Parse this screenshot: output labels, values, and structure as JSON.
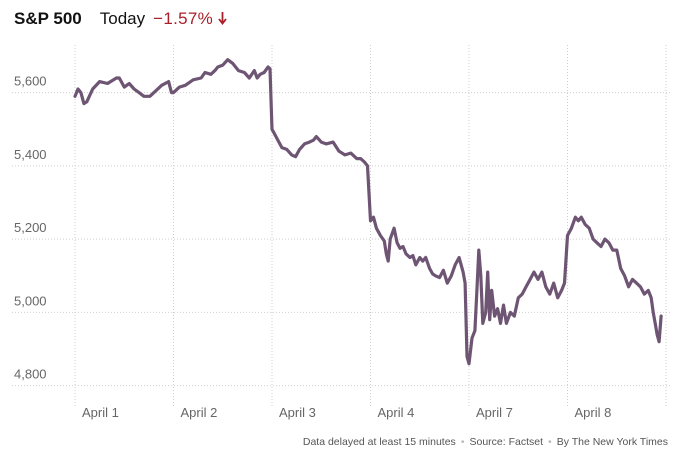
{
  "header": {
    "index_name": "S&P 500",
    "period": "Today",
    "change": "−1.57%",
    "change_direction": "down",
    "change_color": "#a8202a"
  },
  "footer": {
    "delay_note": "Data delayed at least 15 minutes",
    "source": "Source: Factset",
    "credit": "By The New York Times"
  },
  "colors": {
    "line": "#6e5573",
    "grid": "#cfcfcf",
    "axis_text": "#666666"
  },
  "chart_data": {
    "type": "line",
    "title": "S&P 500",
    "ylim": [
      4780,
      5730
    ],
    "yticks": [
      4800,
      5000,
      5200,
      5400,
      5600
    ],
    "ytick_labels": [
      "4,800",
      "5,000",
      "5,200",
      "5,400",
      "5,600"
    ],
    "xticks": [
      "April 1",
      "April 2",
      "April 3",
      "April 4",
      "April 7",
      "April 8"
    ],
    "x_range": [
      0,
      6
    ],
    "grid": "dotted",
    "series": [
      {
        "values": [
          [
            0.0,
            5590
          ],
          [
            0.03,
            5610
          ],
          [
            0.06,
            5600
          ],
          [
            0.09,
            5570
          ],
          [
            0.12,
            5575
          ],
          [
            0.18,
            5610
          ],
          [
            0.25,
            5630
          ],
          [
            0.33,
            5625
          ],
          [
            0.42,
            5640
          ],
          [
            0.45,
            5640
          ],
          [
            0.5,
            5615
          ],
          [
            0.55,
            5625
          ],
          [
            0.6,
            5610
          ],
          [
            0.65,
            5600
          ],
          [
            0.7,
            5590
          ],
          [
            0.76,
            5590
          ],
          [
            0.82,
            5605
          ],
          [
            0.88,
            5620
          ],
          [
            0.95,
            5630
          ],
          [
            0.98,
            5600
          ],
          [
            1.0,
            5600
          ],
          [
            1.06,
            5615
          ],
          [
            1.12,
            5620
          ],
          [
            1.2,
            5635
          ],
          [
            1.28,
            5640
          ],
          [
            1.32,
            5655
          ],
          [
            1.38,
            5650
          ],
          [
            1.42,
            5660
          ],
          [
            1.45,
            5670
          ],
          [
            1.5,
            5675
          ],
          [
            1.55,
            5690
          ],
          [
            1.6,
            5680
          ],
          [
            1.66,
            5660
          ],
          [
            1.72,
            5655
          ],
          [
            1.77,
            5640
          ],
          [
            1.82,
            5660
          ],
          [
            1.85,
            5640
          ],
          [
            1.88,
            5650
          ],
          [
            1.92,
            5655
          ],
          [
            1.96,
            5670
          ],
          [
            1.98,
            5665
          ],
          [
            2.0,
            5500
          ],
          [
            2.02,
            5490
          ],
          [
            2.06,
            5470
          ],
          [
            2.1,
            5450
          ],
          [
            2.15,
            5445
          ],
          [
            2.2,
            5430
          ],
          [
            2.24,
            5425
          ],
          [
            2.28,
            5445
          ],
          [
            2.33,
            5460
          ],
          [
            2.38,
            5465
          ],
          [
            2.42,
            5470
          ],
          [
            2.45,
            5480
          ],
          [
            2.5,
            5465
          ],
          [
            2.55,
            5460
          ],
          [
            2.62,
            5465
          ],
          [
            2.68,
            5440
          ],
          [
            2.74,
            5430
          ],
          [
            2.8,
            5435
          ],
          [
            2.86,
            5420
          ],
          [
            2.9,
            5420
          ],
          [
            2.94,
            5410
          ],
          [
            2.97,
            5400
          ],
          [
            3.0,
            5250
          ],
          [
            3.03,
            5260
          ],
          [
            3.06,
            5230
          ],
          [
            3.1,
            5210
          ],
          [
            3.14,
            5195
          ],
          [
            3.16,
            5160
          ],
          [
            3.18,
            5140
          ],
          [
            3.2,
            5200
          ],
          [
            3.24,
            5230
          ],
          [
            3.27,
            5190
          ],
          [
            3.3,
            5175
          ],
          [
            3.33,
            5180
          ],
          [
            3.36,
            5160
          ],
          [
            3.4,
            5150
          ],
          [
            3.43,
            5155
          ],
          [
            3.46,
            5130
          ],
          [
            3.5,
            5150
          ],
          [
            3.53,
            5140
          ],
          [
            3.56,
            5150
          ],
          [
            3.6,
            5120
          ],
          [
            3.63,
            5105
          ],
          [
            3.66,
            5100
          ],
          [
            3.7,
            5095
          ],
          [
            3.74,
            5115
          ],
          [
            3.78,
            5080
          ],
          [
            3.82,
            5100
          ],
          [
            3.86,
            5130
          ],
          [
            3.9,
            5150
          ],
          [
            3.94,
            5110
          ],
          [
            3.96,
            5080
          ],
          [
            3.98,
            4880
          ],
          [
            4.0,
            4860
          ],
          [
            4.03,
            4930
          ],
          [
            4.06,
            4950
          ],
          [
            4.08,
            5060
          ],
          [
            4.1,
            5170
          ],
          [
            4.12,
            5100
          ],
          [
            4.14,
            4970
          ],
          [
            4.17,
            5000
          ],
          [
            4.19,
            5110
          ],
          [
            4.21,
            4980
          ],
          [
            4.23,
            5060
          ],
          [
            4.26,
            4990
          ],
          [
            4.29,
            5010
          ],
          [
            4.32,
            4970
          ],
          [
            4.35,
            5020
          ],
          [
            4.38,
            4970
          ],
          [
            4.42,
            5000
          ],
          [
            4.46,
            4990
          ],
          [
            4.5,
            5040
          ],
          [
            4.54,
            5050
          ],
          [
            4.58,
            5070
          ],
          [
            4.62,
            5090
          ],
          [
            4.66,
            5110
          ],
          [
            4.7,
            5090
          ],
          [
            4.74,
            5110
          ],
          [
            4.78,
            5070
          ],
          [
            4.82,
            5050
          ],
          [
            4.86,
            5080
          ],
          [
            4.9,
            5040
          ],
          [
            4.94,
            5060
          ],
          [
            4.97,
            5080
          ],
          [
            5.0,
            5210
          ],
          [
            5.04,
            5230
          ],
          [
            5.08,
            5260
          ],
          [
            5.11,
            5250
          ],
          [
            5.14,
            5260
          ],
          [
            5.18,
            5240
          ],
          [
            5.22,
            5230
          ],
          [
            5.26,
            5200
          ],
          [
            5.3,
            5190
          ],
          [
            5.34,
            5180
          ],
          [
            5.38,
            5200
          ],
          [
            5.42,
            5190
          ],
          [
            5.46,
            5170
          ],
          [
            5.5,
            5170
          ],
          [
            5.54,
            5120
          ],
          [
            5.58,
            5100
          ],
          [
            5.62,
            5070
          ],
          [
            5.66,
            5090
          ],
          [
            5.7,
            5080
          ],
          [
            5.74,
            5070
          ],
          [
            5.78,
            5050
          ],
          [
            5.82,
            5060
          ],
          [
            5.85,
            5040
          ],
          [
            5.87,
            5000
          ],
          [
            5.89,
            4970
          ],
          [
            5.91,
            4940
          ],
          [
            5.93,
            4920
          ],
          [
            5.95,
            4990
          ]
        ]
      }
    ]
  }
}
